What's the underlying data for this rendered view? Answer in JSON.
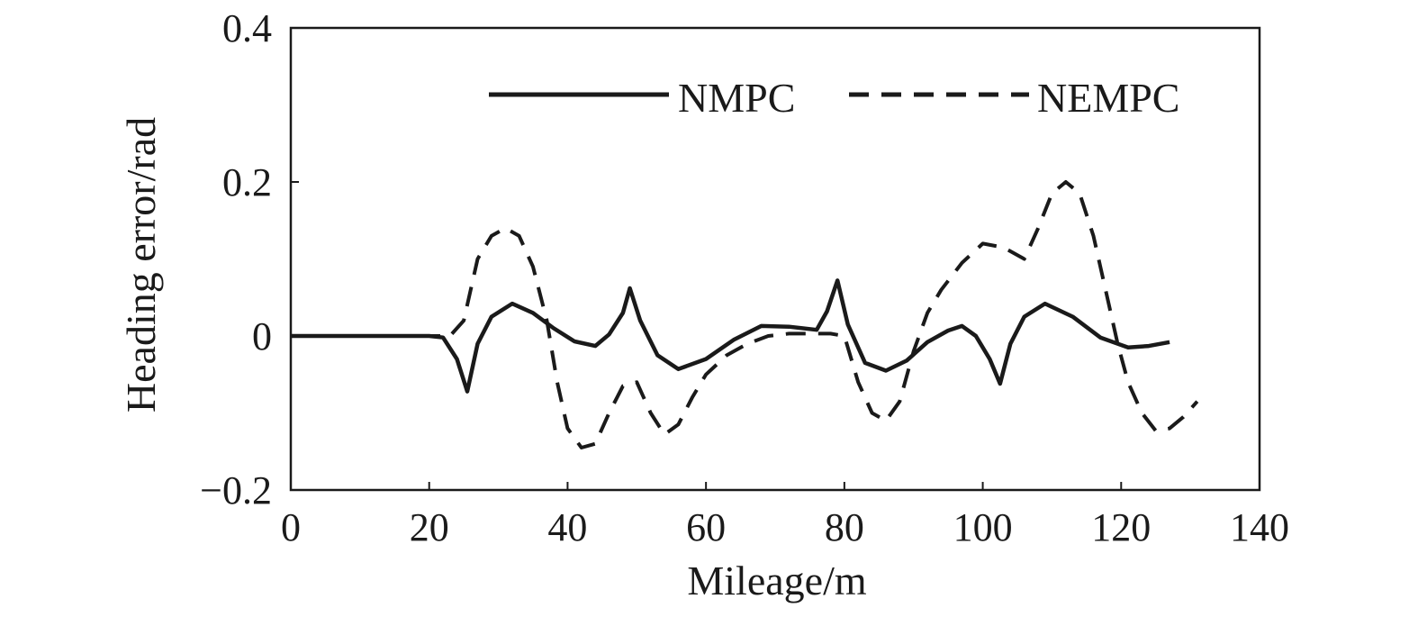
{
  "chart_data": {
    "type": "line",
    "xlabel": "Mileage/m",
    "ylabel": "Heading error/rad",
    "xlim": [
      0,
      140
    ],
    "ylim": [
      -0.2,
      0.4
    ],
    "xticks": [
      0,
      20,
      40,
      60,
      80,
      100,
      120,
      140
    ],
    "yticks": [
      -0.2,
      0,
      0.2,
      0.4
    ],
    "xtick_labels": [
      "0",
      "20",
      "40",
      "60",
      "80",
      "100",
      "120",
      "140"
    ],
    "ytick_labels": [
      "−0.2",
      "0",
      "0.2",
      "0.4"
    ],
    "grid": false,
    "legend_position": "top-right",
    "series": [
      {
        "name": "NMPC",
        "style": "solid",
        "color": "#1a1a1a",
        "x": [
          0,
          20,
          22,
          24,
          25.5,
          27,
          29,
          32,
          35,
          38,
          41,
          44,
          46,
          48,
          49,
          50.5,
          53,
          56,
          60,
          64,
          68,
          72,
          76,
          77.5,
          79,
          80.5,
          83,
          86,
          89,
          92,
          95,
          97,
          99,
          101,
          102.5,
          104,
          106,
          109,
          113,
          117,
          121,
          124,
          127
        ],
        "y": [
          0,
          0,
          -0.002,
          -0.03,
          -0.072,
          -0.01,
          0.025,
          0.042,
          0.03,
          0.01,
          -0.007,
          -0.013,
          0.002,
          0.03,
          0.062,
          0.02,
          -0.025,
          -0.043,
          -0.03,
          -0.005,
          0.013,
          0.012,
          0.008,
          0.032,
          0.072,
          0.015,
          -0.035,
          -0.045,
          -0.032,
          -0.008,
          0.007,
          0.013,
          0.0,
          -0.03,
          -0.062,
          -0.01,
          0.025,
          0.042,
          0.025,
          -0.002,
          -0.015,
          -0.013,
          -0.008
        ]
      },
      {
        "name": "NEMPC",
        "style": "dashed",
        "color": "#1a1a1a",
        "x": [
          0,
          20,
          23,
          25,
          27,
          29,
          31,
          33,
          35,
          37,
          38.5,
          40,
          42,
          44,
          46,
          48,
          50,
          52,
          54,
          56,
          58,
          60,
          63,
          66,
          69,
          72,
          75,
          78,
          80,
          82,
          84,
          86,
          88,
          90,
          92,
          94,
          97,
          100,
          103,
          106,
          108,
          110,
          112,
          114,
          116,
          118,
          119.5,
          121,
          123,
          125,
          127,
          129,
          131
        ],
        "y": [
          0,
          0,
          0.0,
          0.02,
          0.1,
          0.13,
          0.14,
          0.13,
          0.09,
          0.02,
          -0.06,
          -0.12,
          -0.145,
          -0.14,
          -0.1,
          -0.065,
          -0.06,
          -0.1,
          -0.128,
          -0.115,
          -0.08,
          -0.05,
          -0.025,
          -0.01,
          0.0,
          0.003,
          0.003,
          0.003,
          0.0,
          -0.06,
          -0.1,
          -0.11,
          -0.085,
          -0.02,
          0.03,
          0.06,
          0.095,
          0.12,
          0.115,
          0.1,
          0.14,
          0.185,
          0.2,
          0.185,
          0.13,
          0.05,
          -0.01,
          -0.06,
          -0.1,
          -0.123,
          -0.12,
          -0.105,
          -0.085
        ]
      }
    ]
  }
}
